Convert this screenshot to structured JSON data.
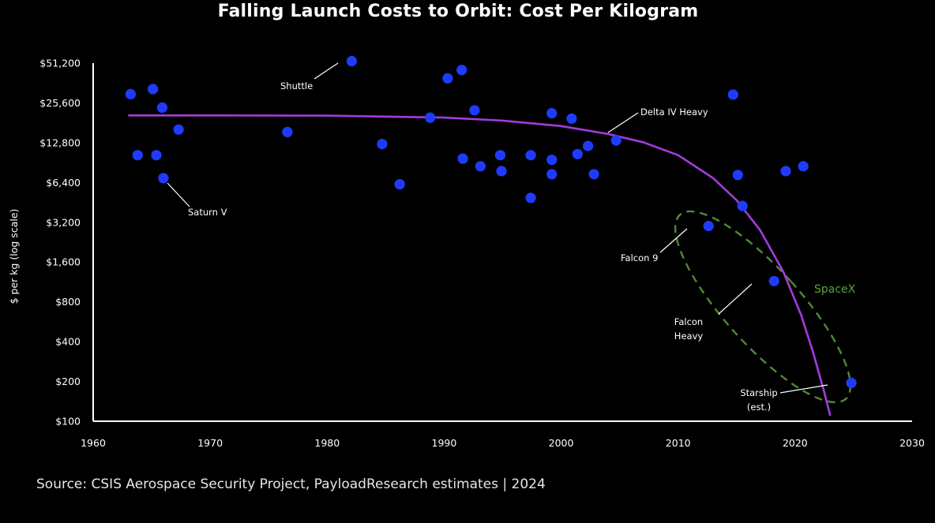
{
  "title": "Falling Launch Costs to Orbit: Cost Per Kilogram",
  "source": "Source: CSIS Aerospace Security Project, PayloadResearch estimates | 2024",
  "colors": {
    "point": "#1f3bff",
    "trend": "#a43cdc",
    "spacex": "#4f8a35",
    "background": "#000000",
    "text": "#ffffff"
  },
  "chart_data": {
    "type": "scatter",
    "title": "Falling Launch Costs to Orbit: Cost Per Kilogram",
    "xlabel": "",
    "ylabel": "$ per kg (log scale)",
    "xlim": [
      1960,
      2030
    ],
    "ylim": [
      100,
      51200
    ],
    "y_scale": "log2",
    "grid": false,
    "x_ticks": [
      1960,
      1970,
      1980,
      1990,
      2000,
      2010,
      2020,
      2030
    ],
    "x_tick_labels": [
      "1960",
      "1970",
      "1980",
      "1990",
      "2000",
      "2010",
      "2020",
      "2030"
    ],
    "y_ticks": [
      100,
      200,
      400,
      800,
      1600,
      3200,
      6400,
      12800,
      25600,
      51200
    ],
    "y_tick_labels": [
      "$100",
      "$200",
      "$400",
      "$800",
      "$1,600",
      "$3,200",
      "$6,400",
      "$12,800",
      "$25,600",
      "$51,200"
    ],
    "points": [
      {
        "x": 1963.2,
        "y": 29800
      },
      {
        "x": 1963.8,
        "y": 10300
      },
      {
        "x": 1965.1,
        "y": 32600
      },
      {
        "x": 1965.4,
        "y": 10300
      },
      {
        "x": 1965.9,
        "y": 23600
      },
      {
        "x": 1966.0,
        "y": 6900,
        "label": "Saturn V"
      },
      {
        "x": 1967.3,
        "y": 16100
      },
      {
        "x": 1976.6,
        "y": 15400
      },
      {
        "x": 1982.1,
        "y": 53000,
        "label": "Shuttle"
      },
      {
        "x": 1984.7,
        "y": 12500
      },
      {
        "x": 1986.2,
        "y": 6200
      },
      {
        "x": 1988.8,
        "y": 19800
      },
      {
        "x": 1990.3,
        "y": 39300
      },
      {
        "x": 1991.5,
        "y": 45400
      },
      {
        "x": 1991.6,
        "y": 9700
      },
      {
        "x": 1992.6,
        "y": 22500
      },
      {
        "x": 1993.1,
        "y": 8500
      },
      {
        "x": 1994.8,
        "y": 10300
      },
      {
        "x": 1994.9,
        "y": 7800
      },
      {
        "x": 1997.4,
        "y": 10300
      },
      {
        "x": 1997.4,
        "y": 4900
      },
      {
        "x": 1999.2,
        "y": 21400
      },
      {
        "x": 1999.2,
        "y": 9500
      },
      {
        "x": 1999.2,
        "y": 7400
      },
      {
        "x": 2000.9,
        "y": 19500
      },
      {
        "x": 2001.4,
        "y": 10500
      },
      {
        "x": 2002.3,
        "y": 12100
      },
      {
        "x": 2002.8,
        "y": 7400
      },
      {
        "x": 2004.7,
        "y": 13300,
        "label": "Delta IV Heavy"
      },
      {
        "x": 2012.6,
        "y": 3000,
        "label": "Falcon 9"
      },
      {
        "x": 2014.7,
        "y": 29600
      },
      {
        "x": 2015.1,
        "y": 7300
      },
      {
        "x": 2015.5,
        "y": 4250
      },
      {
        "x": 2018.2,
        "y": 1150,
        "label": "Falcon Heavy"
      },
      {
        "x": 2019.2,
        "y": 7800
      },
      {
        "x": 2020.7,
        "y": 8500
      },
      {
        "x": 2024.8,
        "y": 195,
        "label": "Starship (est.)"
      }
    ],
    "trend_line": {
      "x": [
        1963,
        1970,
        1980,
        1990,
        1995,
        2000,
        2004,
        2007,
        2010,
        2013,
        2015,
        2017,
        2019,
        2020.5,
        2021.5,
        2022.5,
        2023
      ],
      "y": [
        20600,
        20600,
        20500,
        19800,
        18800,
        17100,
        14900,
        12900,
        10300,
        6900,
        4700,
        2800,
        1350,
        640,
        340,
        165,
        110
      ]
    },
    "group": {
      "name": "SpaceX",
      "members": [
        "Falcon 9",
        "Falcon Heavy",
        "Starship (est.)"
      ]
    }
  }
}
